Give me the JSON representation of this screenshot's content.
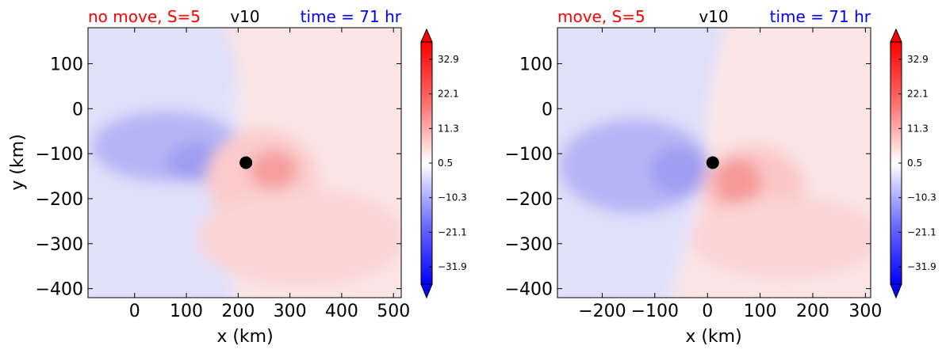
{
  "colors": {
    "neg_strong": "#0000ff",
    "pos_strong": "#ff0000",
    "neutral": "#ffffff",
    "title_left": "#ff0000",
    "title_mid": "#000000",
    "title_right": "#0000ff"
  },
  "chart_data": [
    {
      "type": "heatmap",
      "title_left": "no move, S=5",
      "title_center": "v10",
      "title_right": "time = 71 hr",
      "xlabel": "x (km)",
      "ylabel": "y (km)",
      "xlim": [
        -90,
        515
      ],
      "ylim": [
        -420,
        180
      ],
      "xticks": [
        0,
        100,
        200,
        300,
        400,
        500
      ],
      "xtick_labels": [
        "0",
        "100",
        "200",
        "300",
        "400",
        "500"
      ],
      "yticks": [
        100,
        0,
        -100,
        -200,
        -300,
        -400
      ],
      "ytick_labels": [
        "100",
        "0",
        "−100",
        "−200",
        "−300",
        "−400"
      ],
      "center_marker": {
        "x": 215,
        "y": -120
      },
      "colorbar": {
        "range": [
          -37.3,
          38.3
        ],
        "ticks": [
          32.9,
          22.1,
          11.3,
          0.5,
          -10.3,
          -21.1,
          -31.9
        ],
        "tick_labels": [
          "32.9",
          "22.1",
          "11.3",
          "0.5",
          "−10.3",
          "−21.1",
          "−31.9"
        ]
      }
    },
    {
      "type": "heatmap",
      "title_left": "move, S=5",
      "title_center": "v10",
      "title_right": "time = 71 hr",
      "xlabel": "x (km)",
      "ylabel": "",
      "xlim": [
        -285,
        310
      ],
      "ylim": [
        -420,
        180
      ],
      "xticks": [
        -200,
        -100,
        0,
        100,
        200,
        300
      ],
      "xtick_labels": [
        "−200",
        "−100",
        "0",
        "100",
        "200",
        "300"
      ],
      "yticks": [
        100,
        0,
        -100,
        -200,
        -300,
        -400
      ],
      "ytick_labels": [
        "100",
        "0",
        "−100",
        "−200",
        "−300",
        "−400"
      ],
      "center_marker": {
        "x": 10,
        "y": -120
      },
      "colorbar": {
        "range": [
          -37.3,
          38.3
        ],
        "ticks": [
          32.9,
          22.1,
          11.3,
          0.5,
          -10.3,
          -21.1,
          -31.9
        ],
        "tick_labels": [
          "32.9",
          "22.1",
          "11.3",
          "0.5",
          "−10.3",
          "−21.1",
          "−31.9"
        ]
      }
    }
  ]
}
